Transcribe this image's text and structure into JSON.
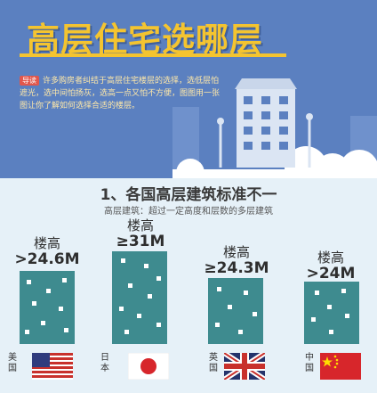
{
  "header": {
    "title": "高层住宅选哪层",
    "intro_tag": "导读",
    "intro_text": "许多购房者纠结于高层住宅楼层的选择，选低层怕遮光，选中间怕扬灰，选高一点又怕不方便，图图用一张图让你了解如何选择合适的楼层。"
  },
  "section": {
    "title": "1、各国高层建筑标准不一",
    "subtitle": "高层建筑：超过一定高度和层数的多层建筑"
  },
  "countries": [
    {
      "name": "美国",
      "height_label": "楼高",
      "height_value": ">24.6M",
      "flag": "usa-flag"
    },
    {
      "name": "日本",
      "height_label": "楼高",
      "height_value": "≥31M",
      "flag": "japan-flag"
    },
    {
      "name": "英国",
      "height_label": "楼高",
      "height_value": "≥24.3M",
      "flag": "uk-flag"
    },
    {
      "name": "中国",
      "height_label": "楼高",
      "height_value": ">24M",
      "flag": "china-flag"
    }
  ],
  "colors": {
    "header_bg": "#5b80c0",
    "title_yellow": "#f4c430",
    "building_teal": "#3e8b8f",
    "page_bg": "#e6f1f8"
  }
}
